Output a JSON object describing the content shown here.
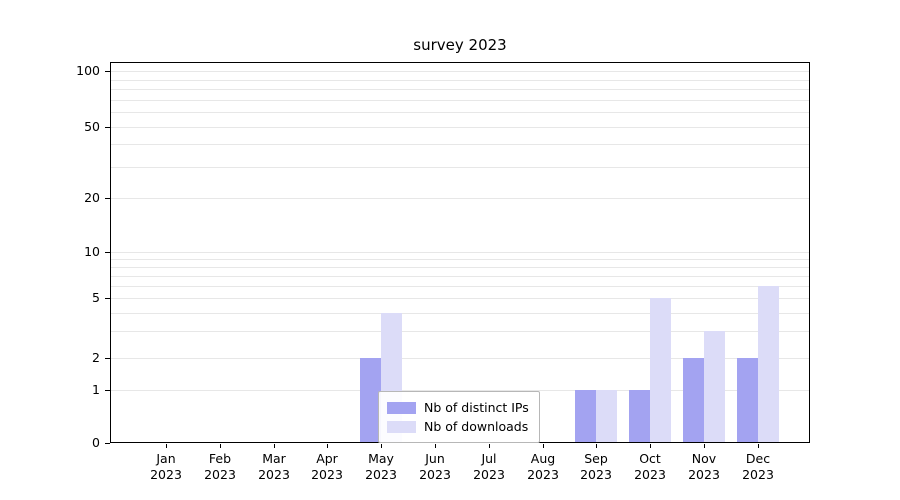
{
  "title": "survey 2023",
  "chart_data": {
    "type": "bar",
    "title": "survey 2023",
    "yscale": "symlog",
    "grid": true,
    "legend_position": "lower center (inside axes)",
    "categories": [
      "Jan 2023",
      "Feb 2023",
      "Mar 2023",
      "Apr 2023",
      "May 2023",
      "Jun 2023",
      "Jul 2023",
      "Aug 2023",
      "Sep 2023",
      "Oct 2023",
      "Nov 2023",
      "Dec 2023"
    ],
    "series": [
      {
        "name": "Nb of distinct IPs",
        "color": "#a3a3f1",
        "values": [
          0,
          0,
          0,
          0,
          2,
          0,
          0,
          0,
          1,
          1,
          2,
          2
        ]
      },
      {
        "name": "Nb of downloads",
        "color": "#dcdcf8",
        "values": [
          0,
          0,
          0,
          0,
          4,
          0,
          0,
          0,
          1,
          5,
          3,
          6
        ]
      }
    ],
    "yticks": [
      0,
      1,
      2,
      5,
      10,
      20,
      50,
      100
    ],
    "gridlines": [
      1,
      2,
      3,
      4,
      5,
      6,
      7,
      8,
      9,
      10,
      20,
      30,
      40,
      50,
      60,
      70,
      80,
      90,
      100
    ],
    "ylim": [
      0,
      110
    ]
  }
}
